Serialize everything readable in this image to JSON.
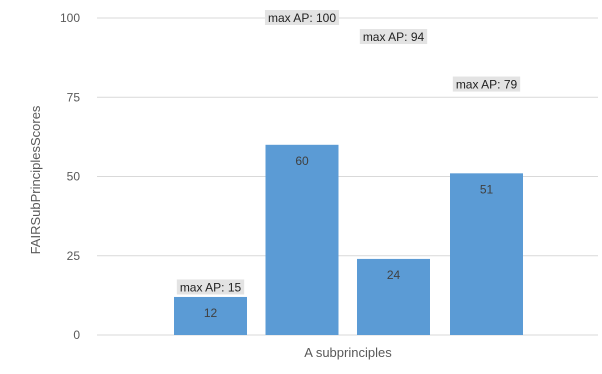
{
  "chart_data": {
    "type": "bar",
    "title": "",
    "xlabel": "A subprinciples",
    "ylabel": "FAIRSubPrinciplesScores",
    "ylim": [
      0,
      100
    ],
    "yticks": [
      0,
      25,
      50,
      75,
      100
    ],
    "grid": true,
    "legend": "none",
    "series": [
      {
        "values": [
          12,
          60,
          24,
          51
        ],
        "data_labels": [
          "12",
          "60",
          "24",
          "51"
        ],
        "annotations": [
          "max AP: 15",
          "max AP: 100",
          "max AP: 94",
          "max AP: 79"
        ],
        "annotation_values": [
          15,
          100,
          94,
          79
        ]
      }
    ],
    "colors": {
      "bar": "#5b9bd5",
      "gridline": "#d9d9d9",
      "annotation_background": "#e3e3e3"
    }
  }
}
